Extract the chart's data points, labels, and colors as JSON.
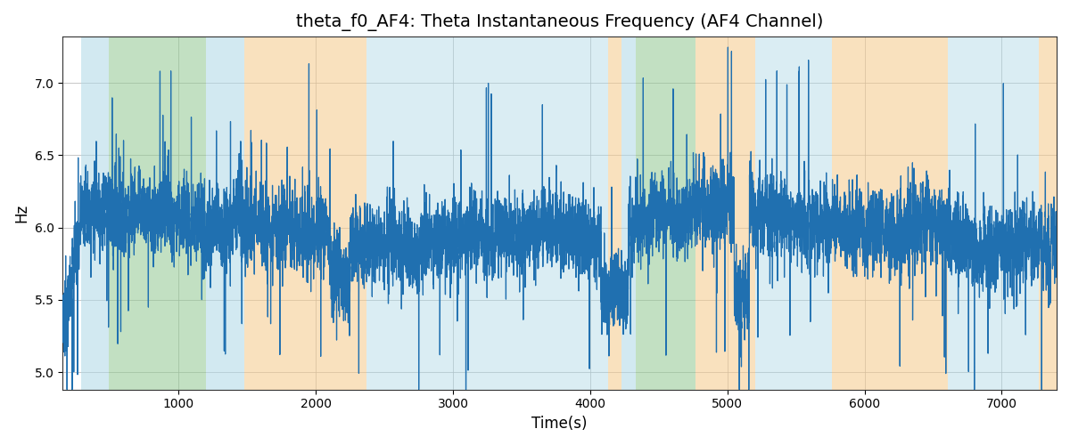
{
  "title": "theta_f0_AF4: Theta Instantaneous Frequency (AF4 Channel)",
  "xlabel": "Time(s)",
  "ylabel": "Hz",
  "xlim": [
    155,
    7400
  ],
  "ylim": [
    4.88,
    7.32
  ],
  "yticks": [
    5.0,
    5.5,
    6.0,
    6.5,
    7.0
  ],
  "line_color": "#2070b0",
  "line_width": 0.9,
  "grid_color": "#b0b0b0",
  "background_color": "#ffffff",
  "title_fontsize": 14,
  "label_fontsize": 12,
  "bands": [
    {
      "xmin": 290,
      "xmax": 490,
      "color": "#add8e6",
      "alpha": 0.55
    },
    {
      "xmin": 490,
      "xmax": 1200,
      "color": "#90c890",
      "alpha": 0.55
    },
    {
      "xmin": 1200,
      "xmax": 1480,
      "color": "#add8e6",
      "alpha": 0.55
    },
    {
      "xmin": 1480,
      "xmax": 2370,
      "color": "#f5c98a",
      "alpha": 0.55
    },
    {
      "xmin": 2370,
      "xmax": 4130,
      "color": "#add8e6",
      "alpha": 0.45
    },
    {
      "xmin": 4130,
      "xmax": 4230,
      "color": "#f5c98a",
      "alpha": 0.55
    },
    {
      "xmin": 4230,
      "xmax": 4330,
      "color": "#add8e6",
      "alpha": 0.55
    },
    {
      "xmin": 4330,
      "xmax": 4770,
      "color": "#90c890",
      "alpha": 0.55
    },
    {
      "xmin": 4770,
      "xmax": 5200,
      "color": "#f5c98a",
      "alpha": 0.55
    },
    {
      "xmin": 5200,
      "xmax": 5760,
      "color": "#add8e6",
      "alpha": 0.45
    },
    {
      "xmin": 5760,
      "xmax": 6610,
      "color": "#f5c98a",
      "alpha": 0.55
    },
    {
      "xmin": 6610,
      "xmax": 7270,
      "color": "#add8e6",
      "alpha": 0.45
    },
    {
      "xmin": 7270,
      "xmax": 7400,
      "color": "#f5c98a",
      "alpha": 0.55
    }
  ],
  "seed": 12345,
  "n_points": 7250
}
